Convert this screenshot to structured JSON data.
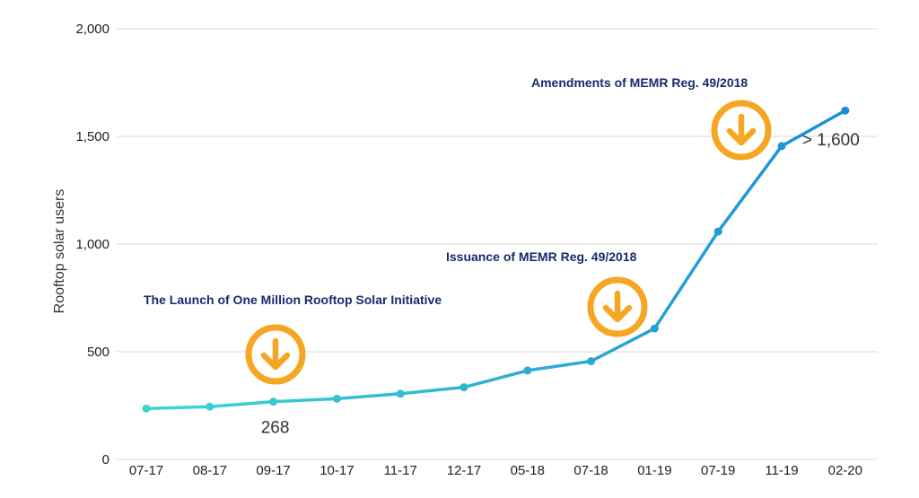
{
  "chart_data": {
    "type": "line",
    "title": "",
    "xlabel": "",
    "ylabel": "Rooftop solar users",
    "categories": [
      "07-17",
      "08-17",
      "09-17",
      "10-17",
      "11-17",
      "12-17",
      "05-18",
      "07-18",
      "01-19",
      "07-19",
      "11-19",
      "02-20"
    ],
    "series": [
      {
        "values": [
          236,
          245,
          268,
          282,
          305,
          335,
          413,
          456,
          608,
          1058,
          1455,
          1620
        ]
      }
    ],
    "ylim": [
      0,
      2000
    ],
    "yticks": [
      0,
      500,
      1000,
      1500,
      2000
    ],
    "ytick_labels": [
      "0",
      "500",
      "1,000",
      "1,500",
      "2,000"
    ],
    "grid": true,
    "line_color_start": "#3dd6d0",
    "line_color_end": "#1b8fd6",
    "data_labels": [
      {
        "category": "09-17",
        "text": "268"
      },
      {
        "category": "02-20",
        "text": "> 1,600"
      }
    ],
    "annotations": [
      {
        "text": "The Launch of One Million Rooftop Solar Initiative",
        "category": "09-17",
        "icon": "arrow-down-circle-icon"
      },
      {
        "text": "Issuance of MEMR Reg. 49/2018",
        "category": "07-18",
        "icon": "arrow-down-circle-icon"
      },
      {
        "text": "Amendments of MEMR Reg. 49/2018",
        "category": "07-19",
        "icon": "arrow-down-circle-icon"
      }
    ],
    "annotation_color": "#f5a623",
    "annotation_text_color": "#1a2a6c",
    "grid_color": "#d9d9d9"
  }
}
